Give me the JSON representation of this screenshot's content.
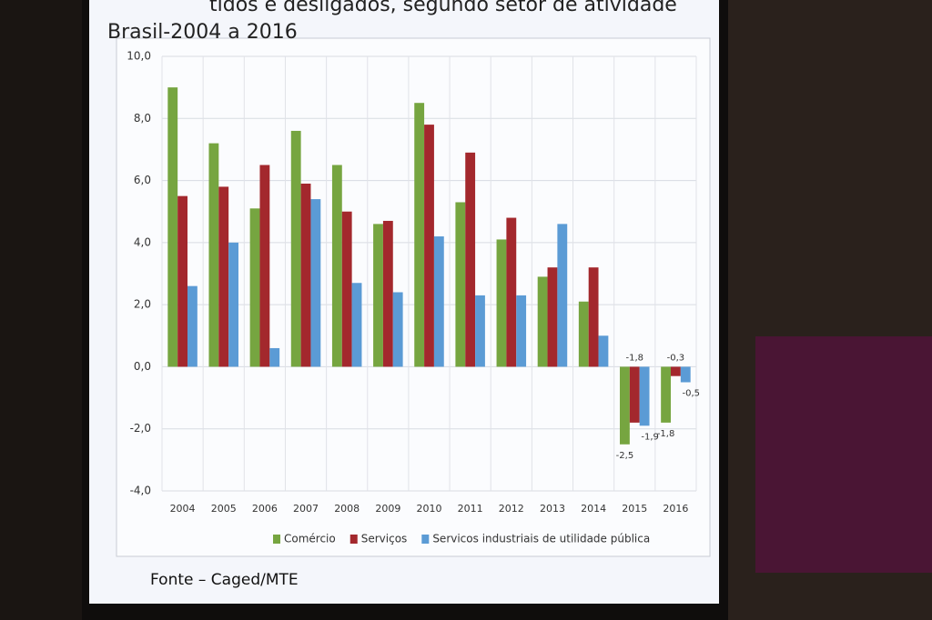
{
  "chart_data": {
    "type": "bar",
    "title": "tidos e desligados, segundo setor de atividade",
    "subtitle": "Brasil-2004 a 2016",
    "source": "Fonte – Caged/MTE",
    "categories": [
      "2004",
      "2005",
      "2006",
      "2007",
      "2008",
      "2009",
      "2010",
      "2011",
      "2012",
      "2013",
      "2014",
      "2015",
      "2016"
    ],
    "series": [
      {
        "name": "Comércio",
        "color": "#76a540",
        "values": [
          9.0,
          7.2,
          5.1,
          7.6,
          6.5,
          4.6,
          8.5,
          5.3,
          4.1,
          2.9,
          2.1,
          -2.5,
          -1.8
        ],
        "value_labels": [
          null,
          null,
          null,
          null,
          null,
          null,
          null,
          null,
          null,
          null,
          null,
          "-2,5",
          "-1,8"
        ]
      },
      {
        "name": "Serviços",
        "color": "#a3282d",
        "values": [
          5.5,
          5.8,
          6.5,
          5.9,
          5.0,
          4.7,
          7.8,
          6.9,
          4.8,
          3.2,
          3.2,
          -1.8,
          -0.3
        ],
        "value_labels": [
          null,
          null,
          null,
          null,
          null,
          null,
          null,
          null,
          null,
          null,
          null,
          "-1,8",
          "-0,3"
        ]
      },
      {
        "name": "Servicos industriais de utilidade pública",
        "color": "#5b9bd5",
        "values": [
          2.6,
          4.0,
          0.6,
          5.4,
          2.7,
          2.4,
          4.2,
          2.3,
          2.3,
          4.6,
          1.0,
          -1.9,
          -0.5
        ],
        "value_labels": [
          null,
          null,
          null,
          null,
          null,
          null,
          null,
          null,
          null,
          null,
          null,
          "-1,9",
          "-0,5"
        ]
      }
    ],
    "ylim": [
      -4,
      10
    ],
    "yticks": [
      {
        "value": -4,
        "label": "-4,0"
      },
      {
        "value": -2,
        "label": "-2,0"
      },
      {
        "value": 0,
        "label": "0,0"
      },
      {
        "value": 2,
        "label": "2,0"
      },
      {
        "value": 4,
        "label": "4,0"
      },
      {
        "value": 6,
        "label": "6,0"
      },
      {
        "value": 8,
        "label": "8,0"
      },
      {
        "value": 10,
        "label": "10,0"
      }
    ],
    "grid": true,
    "legend": "bottom"
  }
}
